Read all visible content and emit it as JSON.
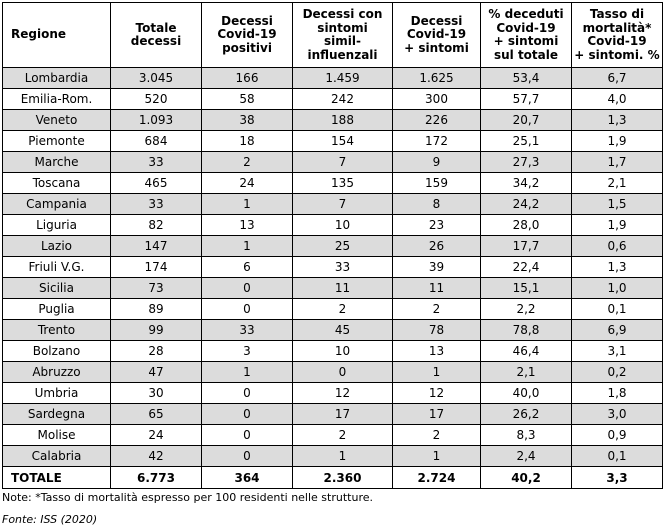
{
  "table": {
    "headers": [
      [
        "Regione"
      ],
      [
        "Totale",
        "decessi"
      ],
      [
        "Decessi",
        "Covid-19",
        "positivi"
      ],
      [
        "Decessi con",
        "sintomi",
        "simil-",
        "influenzali"
      ],
      [
        "Decessi",
        "Covid-19",
        "+ sintomi"
      ],
      [
        "% deceduti",
        "Covid-19",
        "+ sintomi",
        "sul totale"
      ],
      [
        "Tasso di",
        "mortalità*",
        "Covid-19",
        "+ sintomi. %"
      ]
    ],
    "rows": [
      [
        "Lombardia",
        "3.045",
        "166",
        "1.459",
        "1.625",
        "53,4",
        "6,7"
      ],
      [
        "Emilia-Rom.",
        "520",
        "58",
        "242",
        "300",
        "57,7",
        "4,0"
      ],
      [
        "Veneto",
        "1.093",
        "38",
        "188",
        "226",
        "20,7",
        "1,3"
      ],
      [
        "Piemonte",
        "684",
        "18",
        "154",
        "172",
        "25,1",
        "1,9"
      ],
      [
        "Marche",
        "33",
        "2",
        "7",
        "9",
        "27,3",
        "1,7"
      ],
      [
        "Toscana",
        "465",
        "24",
        "135",
        "159",
        "34,2",
        "2,1"
      ],
      [
        "Campania",
        "33",
        "1",
        "7",
        "8",
        "24,2",
        "1,5"
      ],
      [
        "Liguria",
        "82",
        "13",
        "10",
        "23",
        "28,0",
        "1,9"
      ],
      [
        "Lazio",
        "147",
        "1",
        "25",
        "26",
        "17,7",
        "0,6"
      ],
      [
        "Friuli V.G.",
        "174",
        "6",
        "33",
        "39",
        "22,4",
        "1,3"
      ],
      [
        "Sicilia",
        "73",
        "0",
        "11",
        "11",
        "15,1",
        "1,0"
      ],
      [
        "Puglia",
        "89",
        "0",
        "2",
        "2",
        "2,2",
        "0,1"
      ],
      [
        "Trento",
        "99",
        "33",
        "45",
        "78",
        "78,8",
        "6,9"
      ],
      [
        "Bolzano",
        "28",
        "3",
        "10",
        "13",
        "46,4",
        "3,1"
      ],
      [
        "Abruzzo",
        "47",
        "1",
        "0",
        "1",
        "2,1",
        "0,2"
      ],
      [
        "Umbria",
        "30",
        "0",
        "12",
        "12",
        "40,0",
        "1,8"
      ],
      [
        "Sardegna",
        "65",
        "0",
        "17",
        "17",
        "26,2",
        "3,0"
      ],
      [
        "Molise",
        "24",
        "0",
        "2",
        "2",
        "8,3",
        "0,9"
      ],
      [
        "Calabria",
        "42",
        "0",
        "1",
        "1",
        "2,4",
        "0,1"
      ]
    ],
    "total": [
      "TOTALE",
      "6.773",
      "364",
      "2.360",
      "2.724",
      "40,2",
      "3,3"
    ]
  },
  "note": "Note: *Tasso di mortalità espresso per 100 residenti nelle strutture.",
  "source": "Fonte: ISS (2020)"
}
